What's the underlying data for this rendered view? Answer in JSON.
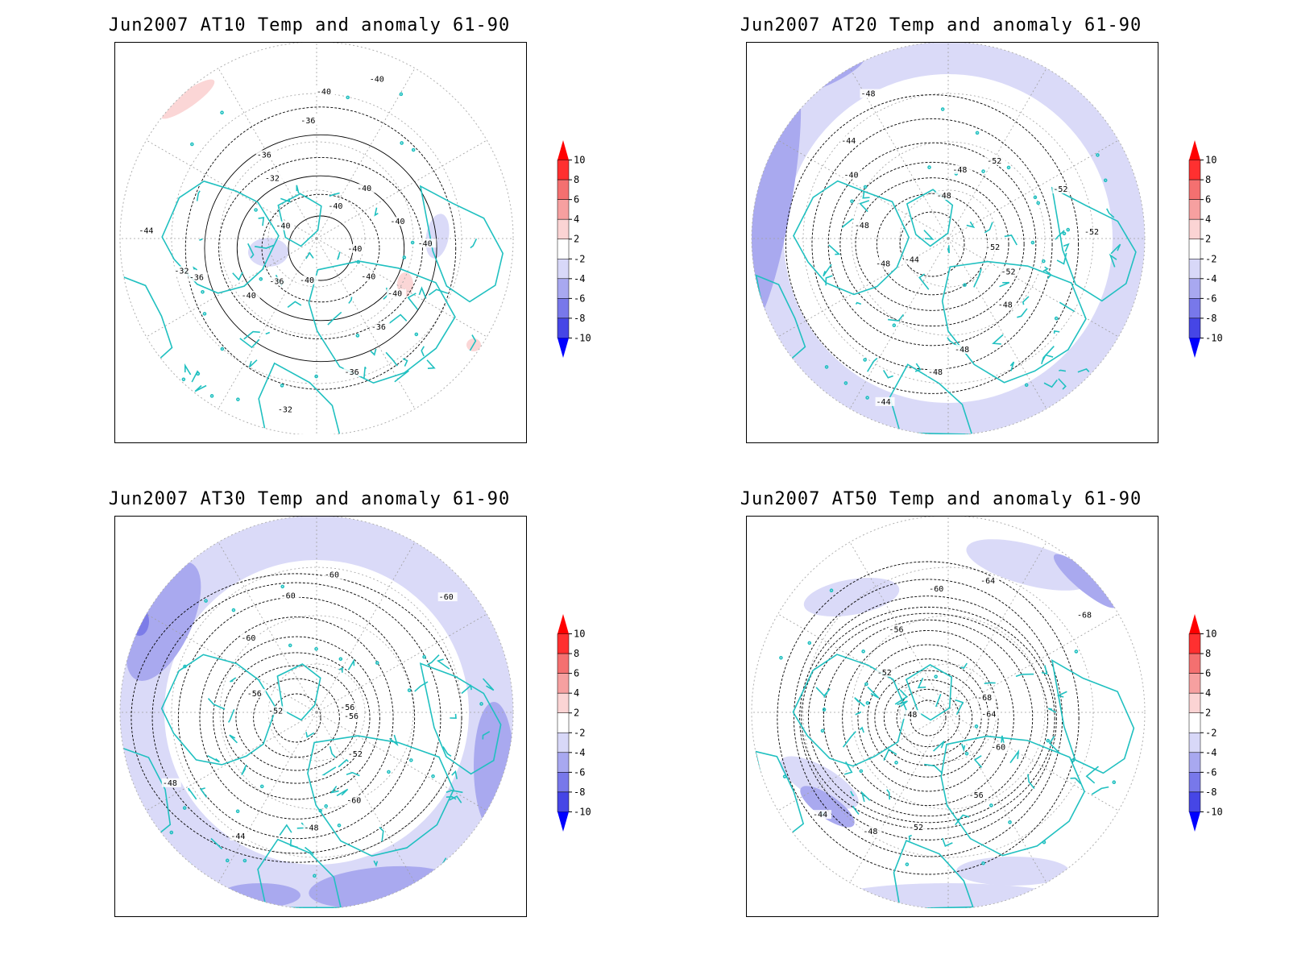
{
  "panels": [
    {
      "title": "Jun2007 AT10 Temp and anomaly 61-90",
      "contour_labels": [
        "-40",
        "-40",
        "-40",
        "-36",
        "-36",
        "-32",
        "-40",
        "-36",
        "-40",
        "-36",
        "-32",
        "-44",
        "-40",
        "-32",
        "-36",
        "-36",
        "-40",
        "-40",
        "-40",
        "-40",
        "-40",
        "-40"
      ],
      "anomaly_fill": "mostly near-zero with small positive patches"
    },
    {
      "title": "Jun2007 AT20 Temp and anomaly 61-90",
      "contour_labels": [
        "-52",
        "-52",
        "-48",
        "-48",
        "-48",
        "-44",
        "-44",
        "-48",
        "-48",
        "-40",
        "-44",
        "-48",
        "-48",
        "-48",
        "-52",
        "-52",
        "-52"
      ],
      "anomaly_fill": "negative band along outer latitudes"
    },
    {
      "title": "Jun2007 AT30 Temp and anomaly 61-90",
      "contour_labels": [
        "-56",
        "-52",
        "-60",
        "-48",
        "-44",
        "-48",
        "-52",
        "-56",
        "-60",
        "-60",
        "-60",
        "-60",
        "-56"
      ],
      "anomaly_fill": "negative band along outer latitudes, stronger in west and south"
    },
    {
      "title": "Jun2007 AT50 Temp and anomaly 61-90",
      "contour_labels": [
        "-64",
        "-60",
        "-56",
        "-52",
        "-48",
        "-44",
        "-48",
        "-52",
        "-56",
        "-60",
        "-64",
        "-68",
        "-68"
      ],
      "anomaly_fill": "weak negative patches"
    }
  ],
  "colorbar": {
    "ticks": [
      "10",
      "8",
      "6",
      "4",
      "2",
      "-2",
      "-4",
      "-6",
      "-8",
      "-10"
    ],
    "colors": [
      "#ff0000",
      "#ff3030",
      "#f47070",
      "#f6a0a0",
      "#fbd4d4",
      "#ffffff",
      "#d8d8f8",
      "#a8a8f0",
      "#7878ea",
      "#4646e6",
      "#0000ff"
    ]
  },
  "colors": {
    "coast": "#20c0c0",
    "contour": "#000000",
    "neg1": "#dadaf8",
    "neg2": "#a9a9ef",
    "neg3": "#7c7ce8",
    "pos1": "#fbd6d6",
    "pos2": "#f4a9a9",
    "grid": "#a0a0a0"
  }
}
